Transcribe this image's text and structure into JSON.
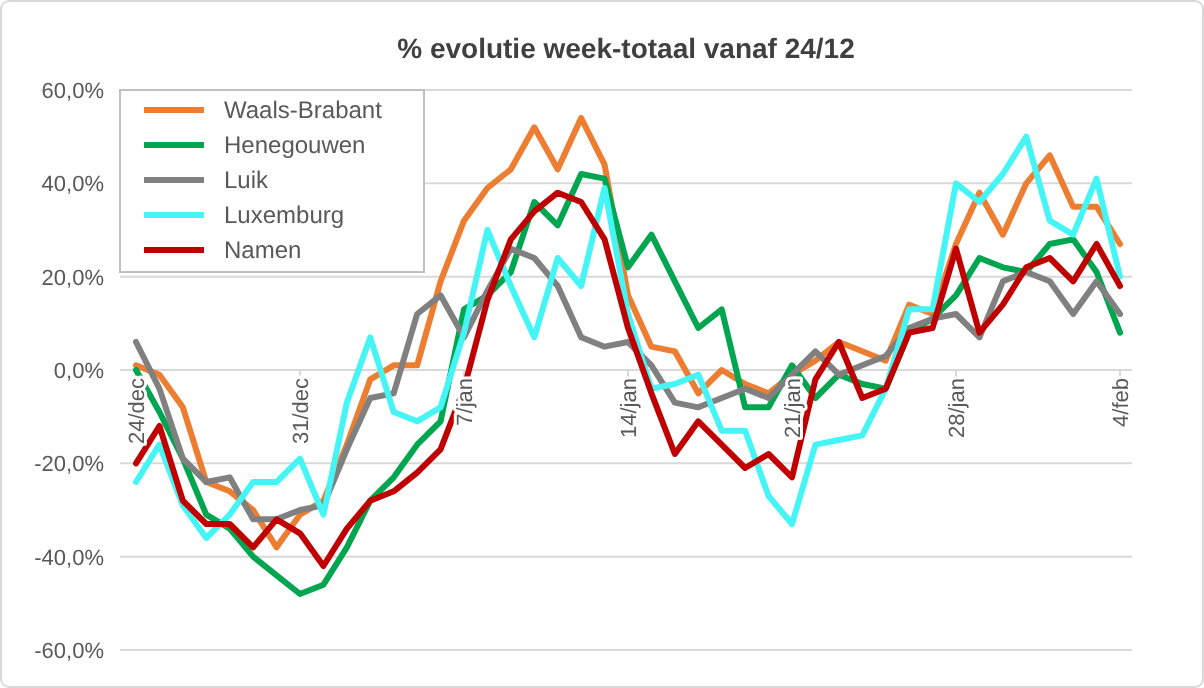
{
  "chart_data": {
    "type": "line",
    "title": "% evolutie week-totaal  vanaf 24/12",
    "categories": [
      "24/dec",
      null,
      null,
      null,
      null,
      null,
      null,
      "31/dec",
      null,
      null,
      null,
      null,
      null,
      null,
      "7/jan",
      null,
      null,
      null,
      null,
      null,
      null,
      "14/jan",
      null,
      null,
      null,
      null,
      null,
      null,
      "21/jan",
      null,
      null,
      null,
      null,
      null,
      null,
      "28/jan",
      null,
      null,
      null,
      null,
      null,
      null,
      "4/feb"
    ],
    "ylim": [
      -60,
      60
    ],
    "yticks": [
      {
        "value": -60,
        "label": "-60,0%"
      },
      {
        "value": -40,
        "label": "-40,0%"
      },
      {
        "value": -20,
        "label": "-20,0%"
      },
      {
        "value": 0,
        "label": "0,0%"
      },
      {
        "value": 20,
        "label": "20,0%"
      },
      {
        "value": 40,
        "label": "40,0%"
      },
      {
        "value": 60,
        "label": "60,0%"
      }
    ],
    "grid": "y",
    "legend": "top left",
    "marker": "none",
    "line_style": "solid",
    "series": [
      {
        "name": "Waals-Brabant",
        "color": "#ed7d31",
        "values": [
          1,
          -1,
          -8,
          -24,
          -26,
          -30,
          -38,
          -31,
          -28,
          -16,
          -2,
          1,
          1,
          19,
          32,
          39,
          43,
          52,
          43,
          54,
          44,
          16,
          5,
          4,
          -5,
          0,
          -3,
          -5,
          -1,
          2,
          6,
          4,
          2,
          14,
          12,
          27,
          38,
          29,
          40,
          46,
          35,
          35,
          27
        ]
      },
      {
        "name": "Henegouwen",
        "color": "#00a550",
        "values": [
          0,
          -9,
          -19,
          -31,
          -34,
          -40,
          -44,
          -48,
          -46,
          -38,
          -28,
          -23,
          -16,
          -11,
          13,
          16,
          21,
          36,
          31,
          42,
          41,
          22,
          29,
          19,
          9,
          13,
          -8,
          -8,
          1,
          -6,
          -1,
          -3,
          -4,
          8,
          11,
          16,
          24,
          22,
          21,
          27,
          28,
          21,
          8
        ]
      },
      {
        "name": "Luik",
        "color": "#808080",
        "values": [
          6,
          -4,
          -19,
          -24,
          -23,
          -32,
          -32,
          -30,
          -29,
          -17,
          -6,
          -5,
          12,
          16,
          7,
          17,
          26,
          24,
          18,
          7,
          5,
          6,
          1,
          -7,
          -8,
          -6,
          -4,
          -6,
          -1,
          4,
          -1,
          1,
          3,
          9,
          11,
          12,
          7,
          19,
          21,
          19,
          12,
          19,
          12
        ]
      },
      {
        "name": "Luxemburg",
        "color": "#45f5f5",
        "values": [
          -24,
          -16,
          -29,
          -36,
          -31,
          -24,
          -24,
          -19,
          -31,
          -7,
          7,
          -9,
          -11,
          -8,
          8,
          30,
          18,
          7,
          24,
          18,
          39,
          12,
          -4,
          -3,
          -1,
          -13,
          -13,
          -27,
          -33,
          -16,
          -15,
          -14,
          -4,
          13,
          13,
          40,
          36,
          42,
          50,
          32,
          29,
          41,
          20
        ]
      },
      {
        "name": "Namen",
        "color": "#c00000",
        "values": [
          -20,
          -12,
          -28,
          -33,
          -33,
          -38,
          -32,
          -35,
          -42,
          -34,
          -28,
          -26,
          -22,
          -17,
          -4,
          15,
          28,
          34,
          38,
          36,
          28,
          9,
          -5,
          -18,
          -11,
          -16,
          -21,
          -18,
          -23,
          -2,
          6,
          -6,
          -4,
          8,
          9,
          26,
          8,
          14,
          22,
          24,
          19,
          27,
          18
        ]
      }
    ]
  }
}
